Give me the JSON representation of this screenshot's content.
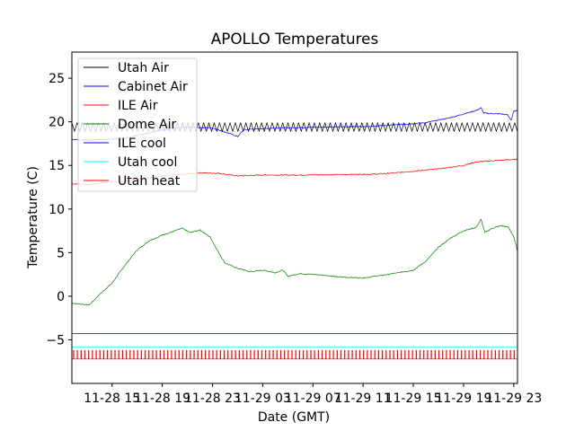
{
  "chart_data": {
    "type": "line",
    "title": "APOLLO Temperatures",
    "xlabel": "Date (GMT)",
    "ylabel": "Temperature (C)",
    "ylim": [
      -10,
      28
    ],
    "yticks": [
      -5,
      0,
      5,
      10,
      15,
      20,
      25
    ],
    "xticks": [
      "11-28 15",
      "11-28 19",
      "11-28 23",
      "11-29 03",
      "11-29 07",
      "11-29 11",
      "11-29 15",
      "11-29 19",
      "11-29 23"
    ],
    "x_range_hours": [
      11.8,
      47.3
    ],
    "legend_location": "upper-left",
    "series": [
      {
        "name": "Utah Air",
        "color": "#000000",
        "style": "sawtooth",
        "base": [
          [
            11.8,
            19.4
          ],
          [
            47.3,
            19.4
          ]
        ],
        "amplitude": 0.5,
        "period_hours": 0.42
      },
      {
        "name": "Cabinet Air",
        "color": "#0000ff",
        "style": "line",
        "points": [
          [
            11.8,
            18.0
          ],
          [
            13.0,
            17.9
          ],
          [
            16.0,
            18.1
          ],
          [
            19.0,
            19.1
          ],
          [
            21.0,
            19.4
          ],
          [
            23.0,
            19.3
          ],
          [
            24.5,
            18.6
          ],
          [
            25.0,
            18.3
          ],
          [
            25.5,
            19.1
          ],
          [
            28.0,
            19.3
          ],
          [
            32.0,
            19.4
          ],
          [
            36.0,
            19.5
          ],
          [
            40.0,
            19.9
          ],
          [
            42.0,
            20.5
          ],
          [
            44.0,
            21.3
          ],
          [
            44.4,
            21.6
          ],
          [
            44.6,
            21.0
          ],
          [
            46.0,
            20.9
          ],
          [
            46.5,
            20.8
          ],
          [
            46.8,
            20.2
          ],
          [
            47.0,
            21.2
          ],
          [
            47.3,
            21.3
          ]
        ]
      },
      {
        "name": "ILE Air",
        "color": "#ff0000",
        "style": "line",
        "points": [
          [
            11.8,
            12.9
          ],
          [
            13.0,
            12.8
          ],
          [
            15.0,
            13.1
          ],
          [
            17.0,
            13.4
          ],
          [
            19.0,
            13.8
          ],
          [
            21.0,
            14.0
          ],
          [
            22.0,
            14.15
          ],
          [
            23.5,
            14.1
          ],
          [
            25.0,
            13.8
          ],
          [
            27.0,
            13.9
          ],
          [
            30.0,
            13.9
          ],
          [
            33.0,
            13.95
          ],
          [
            36.0,
            14.0
          ],
          [
            38.0,
            14.2
          ],
          [
            41.0,
            14.6
          ],
          [
            43.0,
            15.0
          ],
          [
            44.0,
            15.4
          ],
          [
            46.0,
            15.6
          ],
          [
            47.3,
            15.7
          ]
        ]
      },
      {
        "name": "Dome Air",
        "color": "#008000",
        "style": "line",
        "points": [
          [
            11.8,
            -0.8
          ],
          [
            12.5,
            -0.9
          ],
          [
            13.2,
            -1.0
          ],
          [
            14.0,
            0.2
          ],
          [
            15.0,
            1.5
          ],
          [
            16.0,
            3.5
          ],
          [
            17.0,
            5.3
          ],
          [
            18.0,
            6.4
          ],
          [
            19.0,
            7.0
          ],
          [
            20.0,
            7.5
          ],
          [
            20.6,
            7.8
          ],
          [
            21.2,
            7.3
          ],
          [
            22.0,
            7.6
          ],
          [
            22.8,
            6.8
          ],
          [
            23.5,
            5.0
          ],
          [
            24.0,
            3.8
          ],
          [
            25.0,
            3.2
          ],
          [
            26.0,
            2.8
          ],
          [
            27.0,
            3.0
          ],
          [
            28.0,
            2.7
          ],
          [
            28.6,
            3.0
          ],
          [
            29.0,
            2.3
          ],
          [
            30.0,
            2.6
          ],
          [
            32.0,
            2.4
          ],
          [
            33.0,
            2.2
          ],
          [
            35.0,
            2.1
          ],
          [
            37.0,
            2.5
          ],
          [
            39.0,
            3.0
          ],
          [
            40.0,
            4.0
          ],
          [
            41.0,
            5.6
          ],
          [
            42.0,
            6.7
          ],
          [
            43.0,
            7.5
          ],
          [
            44.0,
            7.9
          ],
          [
            44.4,
            8.8
          ],
          [
            44.7,
            7.3
          ],
          [
            45.3,
            7.8
          ],
          [
            46.0,
            8.1
          ],
          [
            46.6,
            7.9
          ],
          [
            47.0,
            6.8
          ],
          [
            47.3,
            5.2
          ]
        ]
      },
      {
        "name": "ILE cool",
        "color": "#0000ff",
        "style": "flat",
        "points": [
          [
            11.8,
            -4.3
          ],
          [
            47.3,
            -4.3
          ]
        ]
      },
      {
        "name": "Utah cool",
        "color": "#00ffff",
        "style": "flat",
        "points": [
          [
            11.8,
            -5.8
          ],
          [
            47.3,
            -5.8
          ]
        ]
      },
      {
        "name": "Utah heat",
        "color": "#ff0000",
        "style": "pulses",
        "low": -7.2,
        "high": -6.2,
        "period_hours": 0.3
      }
    ]
  }
}
